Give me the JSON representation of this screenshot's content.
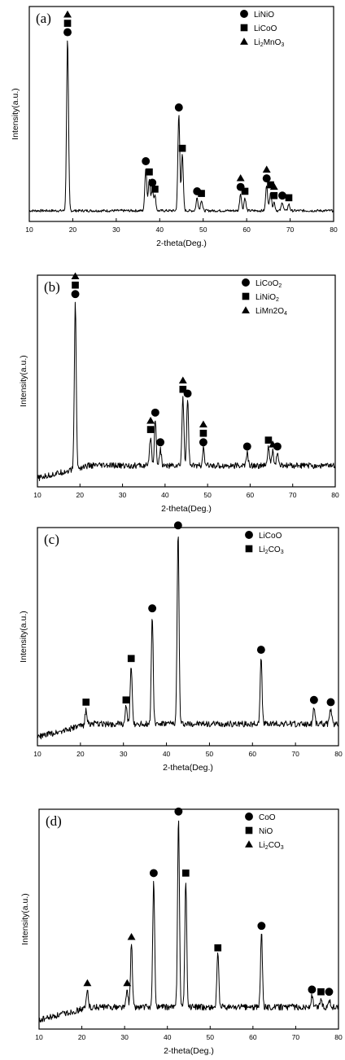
{
  "chart_data": [
    {
      "type": "line",
      "panel_label": "(a)",
      "xlabel": "2-theta(Deg.)",
      "ylabel": "Intensity(a.u.)",
      "xlim": [
        10,
        80
      ],
      "x_ticks": [
        "10",
        "20",
        "30",
        "40",
        "50",
        "60",
        "70",
        "80"
      ],
      "legend": [
        {
          "marker": "circle",
          "text_parts": [
            "LiNiO"
          ]
        },
        {
          "marker": "square",
          "text_parts": [
            "LiCoO"
          ]
        },
        {
          "marker": "triangle",
          "text_parts": [
            "Li",
            "2",
            "MnO",
            "3"
          ]
        }
      ],
      "peaks": [
        {
          "x": 18.8,
          "y": 0.8,
          "markers": [
            "circle",
            "square",
            "triangle"
          ]
        },
        {
          "x": 36.8,
          "y": 0.2,
          "markers": [
            "circle"
          ]
        },
        {
          "x": 37.6,
          "y": 0.15,
          "markers": [
            "square"
          ]
        },
        {
          "x": 38.3,
          "y": 0.1,
          "markers": [
            "circle"
          ]
        },
        {
          "x": 38.9,
          "y": 0.07,
          "markers": [
            "square"
          ]
        },
        {
          "x": 44.4,
          "y": 0.45,
          "markers": [
            "circle"
          ]
        },
        {
          "x": 45.2,
          "y": 0.26,
          "markers": [
            "square"
          ]
        },
        {
          "x": 48.6,
          "y": 0.06,
          "markers": [
            "circle"
          ]
        },
        {
          "x": 49.6,
          "y": 0.05,
          "markers": [
            "square"
          ]
        },
        {
          "x": 58.6,
          "y": 0.08,
          "markers": [
            "circle",
            "triangle"
          ]
        },
        {
          "x": 59.6,
          "y": 0.06,
          "markers": [
            "square"
          ]
        },
        {
          "x": 64.6,
          "y": 0.12,
          "markers": [
            "circle",
            "triangle"
          ]
        },
        {
          "x": 65.5,
          "y": 0.09,
          "markers": [
            "square"
          ]
        },
        {
          "x": 66.3,
          "y": 0.04,
          "markers": [
            "square",
            "triangle"
          ]
        },
        {
          "x": 68.2,
          "y": 0.04,
          "markers": [
            "circle"
          ]
        },
        {
          "x": 69.7,
          "y": 0.03,
          "markers": [
            "square"
          ]
        }
      ]
    },
    {
      "type": "line",
      "panel_label": "(b)",
      "xlabel": "2-theta(Deg.)",
      "ylabel": "Intensity(a.u.)",
      "xlim": [
        10,
        80
      ],
      "x_ticks": [
        "10",
        "20",
        "30",
        "40",
        "50",
        "60",
        "70",
        "80"
      ],
      "legend": [
        {
          "marker": "circle",
          "text_parts": [
            "LiCoO",
            "2"
          ]
        },
        {
          "marker": "square",
          "text_parts": [
            "LiNiO",
            "2"
          ]
        },
        {
          "marker": "triangle",
          "text_parts": [
            "LiMn2O",
            "4"
          ]
        }
      ],
      "peaks": [
        {
          "x": 18.9,
          "y": 0.78,
          "markers": [
            "circle",
            "square",
            "triangle"
          ]
        },
        {
          "x": 36.6,
          "y": 0.14,
          "markers": [
            "square",
            "triangle"
          ]
        },
        {
          "x": 37.7,
          "y": 0.22,
          "markers": [
            "circle"
          ]
        },
        {
          "x": 38.9,
          "y": 0.08,
          "markers": [
            "circle"
          ]
        },
        {
          "x": 44.2,
          "y": 0.33,
          "markers": [
            "square",
            "triangle"
          ]
        },
        {
          "x": 45.3,
          "y": 0.31,
          "markers": [
            "circle"
          ]
        },
        {
          "x": 49.0,
          "y": 0.08,
          "markers": [
            "circle",
            "square",
            "triangle"
          ]
        },
        {
          "x": 59.3,
          "y": 0.06,
          "markers": [
            "circle"
          ]
        },
        {
          "x": 64.3,
          "y": 0.09,
          "markers": [
            "square"
          ]
        },
        {
          "x": 65.3,
          "y": 0.07,
          "markers": [
            "triangle"
          ]
        },
        {
          "x": 66.4,
          "y": 0.06,
          "markers": [
            "circle"
          ]
        }
      ]
    },
    {
      "type": "line",
      "panel_label": "(c)",
      "xlabel": "2-theta(Deg.)",
      "ylabel": "Intensity(a.u.)",
      "xlim": [
        10,
        80
      ],
      "x_ticks": [
        "10",
        "20",
        "30",
        "40",
        "50",
        "60",
        "70",
        "80"
      ],
      "legend": [
        {
          "marker": "circle",
          "text_parts": [
            "LiCoO"
          ]
        },
        {
          "marker": "square",
          "text_parts": [
            "Li",
            "2",
            "CO",
            "3"
          ]
        }
      ],
      "peaks": [
        {
          "x": 21.3,
          "y": 0.07,
          "markers": [
            "square"
          ]
        },
        {
          "x": 30.6,
          "y": 0.08,
          "markers": [
            "square"
          ]
        },
        {
          "x": 31.8,
          "y": 0.27,
          "markers": [
            "square"
          ]
        },
        {
          "x": 36.7,
          "y": 0.5,
          "markers": [
            "circle"
          ]
        },
        {
          "x": 42.7,
          "y": 0.88,
          "markers": [
            "circle"
          ]
        },
        {
          "x": 62.0,
          "y": 0.31,
          "markers": [
            "circle"
          ]
        },
        {
          "x": 74.3,
          "y": 0.08,
          "markers": [
            "circle"
          ]
        },
        {
          "x": 78.2,
          "y": 0.07,
          "markers": [
            "circle"
          ]
        }
      ]
    },
    {
      "type": "line",
      "panel_label": "(d)",
      "xlabel": "2-theta(Deg.)",
      "ylabel": "Intensity(a.u.)",
      "xlim": [
        10,
        80
      ],
      "x_ticks": [
        "10",
        "20",
        "30",
        "40",
        "50",
        "60",
        "70",
        "80"
      ],
      "legend": [
        {
          "marker": "circle",
          "text_parts": [
            "CoO"
          ]
        },
        {
          "marker": "square",
          "text_parts": [
            "NiO"
          ]
        },
        {
          "marker": "triangle",
          "text_parts": [
            "Li",
            "2",
            "CO",
            "3"
          ]
        }
      ],
      "peaks": [
        {
          "x": 21.3,
          "y": 0.08,
          "markers": [
            "triangle"
          ]
        },
        {
          "x": 30.6,
          "y": 0.08,
          "markers": [
            "triangle"
          ]
        },
        {
          "x": 31.6,
          "y": 0.29,
          "markers": [
            "triangle"
          ]
        },
        {
          "x": 36.8,
          "y": 0.58,
          "markers": [
            "circle"
          ]
        },
        {
          "x": 42.6,
          "y": 0.86,
          "markers": [
            "circle"
          ]
        },
        {
          "x": 44.3,
          "y": 0.58,
          "markers": [
            "square"
          ]
        },
        {
          "x": 51.8,
          "y": 0.24,
          "markers": [
            "square"
          ]
        },
        {
          "x": 62.0,
          "y": 0.34,
          "markers": [
            "circle"
          ]
        },
        {
          "x": 73.8,
          "y": 0.05,
          "markers": [
            "circle"
          ]
        },
        {
          "x": 75.9,
          "y": 0.04,
          "markers": [
            "square"
          ]
        },
        {
          "x": 77.8,
          "y": 0.04,
          "markers": [
            "circle"
          ]
        }
      ]
    }
  ]
}
